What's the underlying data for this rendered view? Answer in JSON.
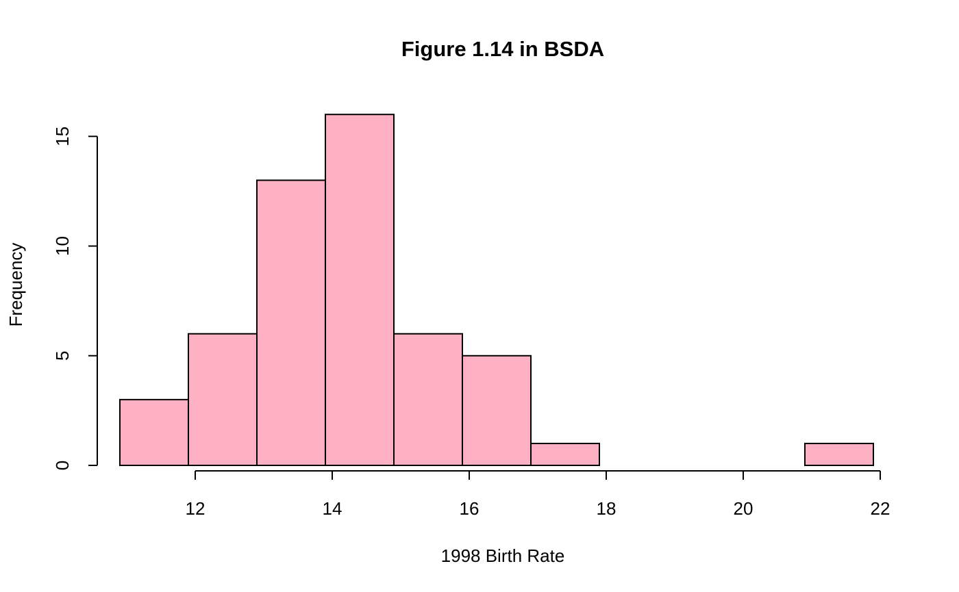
{
  "chart_data": {
    "type": "bar",
    "subtype": "histogram",
    "title": "Figure 1.14 in BSDA",
    "xlabel": "1998 Birth Rate",
    "ylabel": "Frequency",
    "bin_edges": [
      10.9,
      11.9,
      12.9,
      13.9,
      14.9,
      15.9,
      16.9,
      17.9,
      18.9,
      19.9,
      20.9,
      21.9
    ],
    "values": [
      3,
      6,
      13,
      16,
      6,
      5,
      1,
      0,
      0,
      0,
      1
    ],
    "x_ticks": [
      12,
      14,
      16,
      18,
      20,
      22
    ],
    "y_ticks": [
      0,
      5,
      10,
      15
    ],
    "xlim": [
      10.5,
      22.3
    ],
    "ylim": [
      0,
      16.6
    ],
    "bar_color": "#FDB1C2",
    "bar_border_color": "#000000",
    "grid": false,
    "legend": false
  }
}
